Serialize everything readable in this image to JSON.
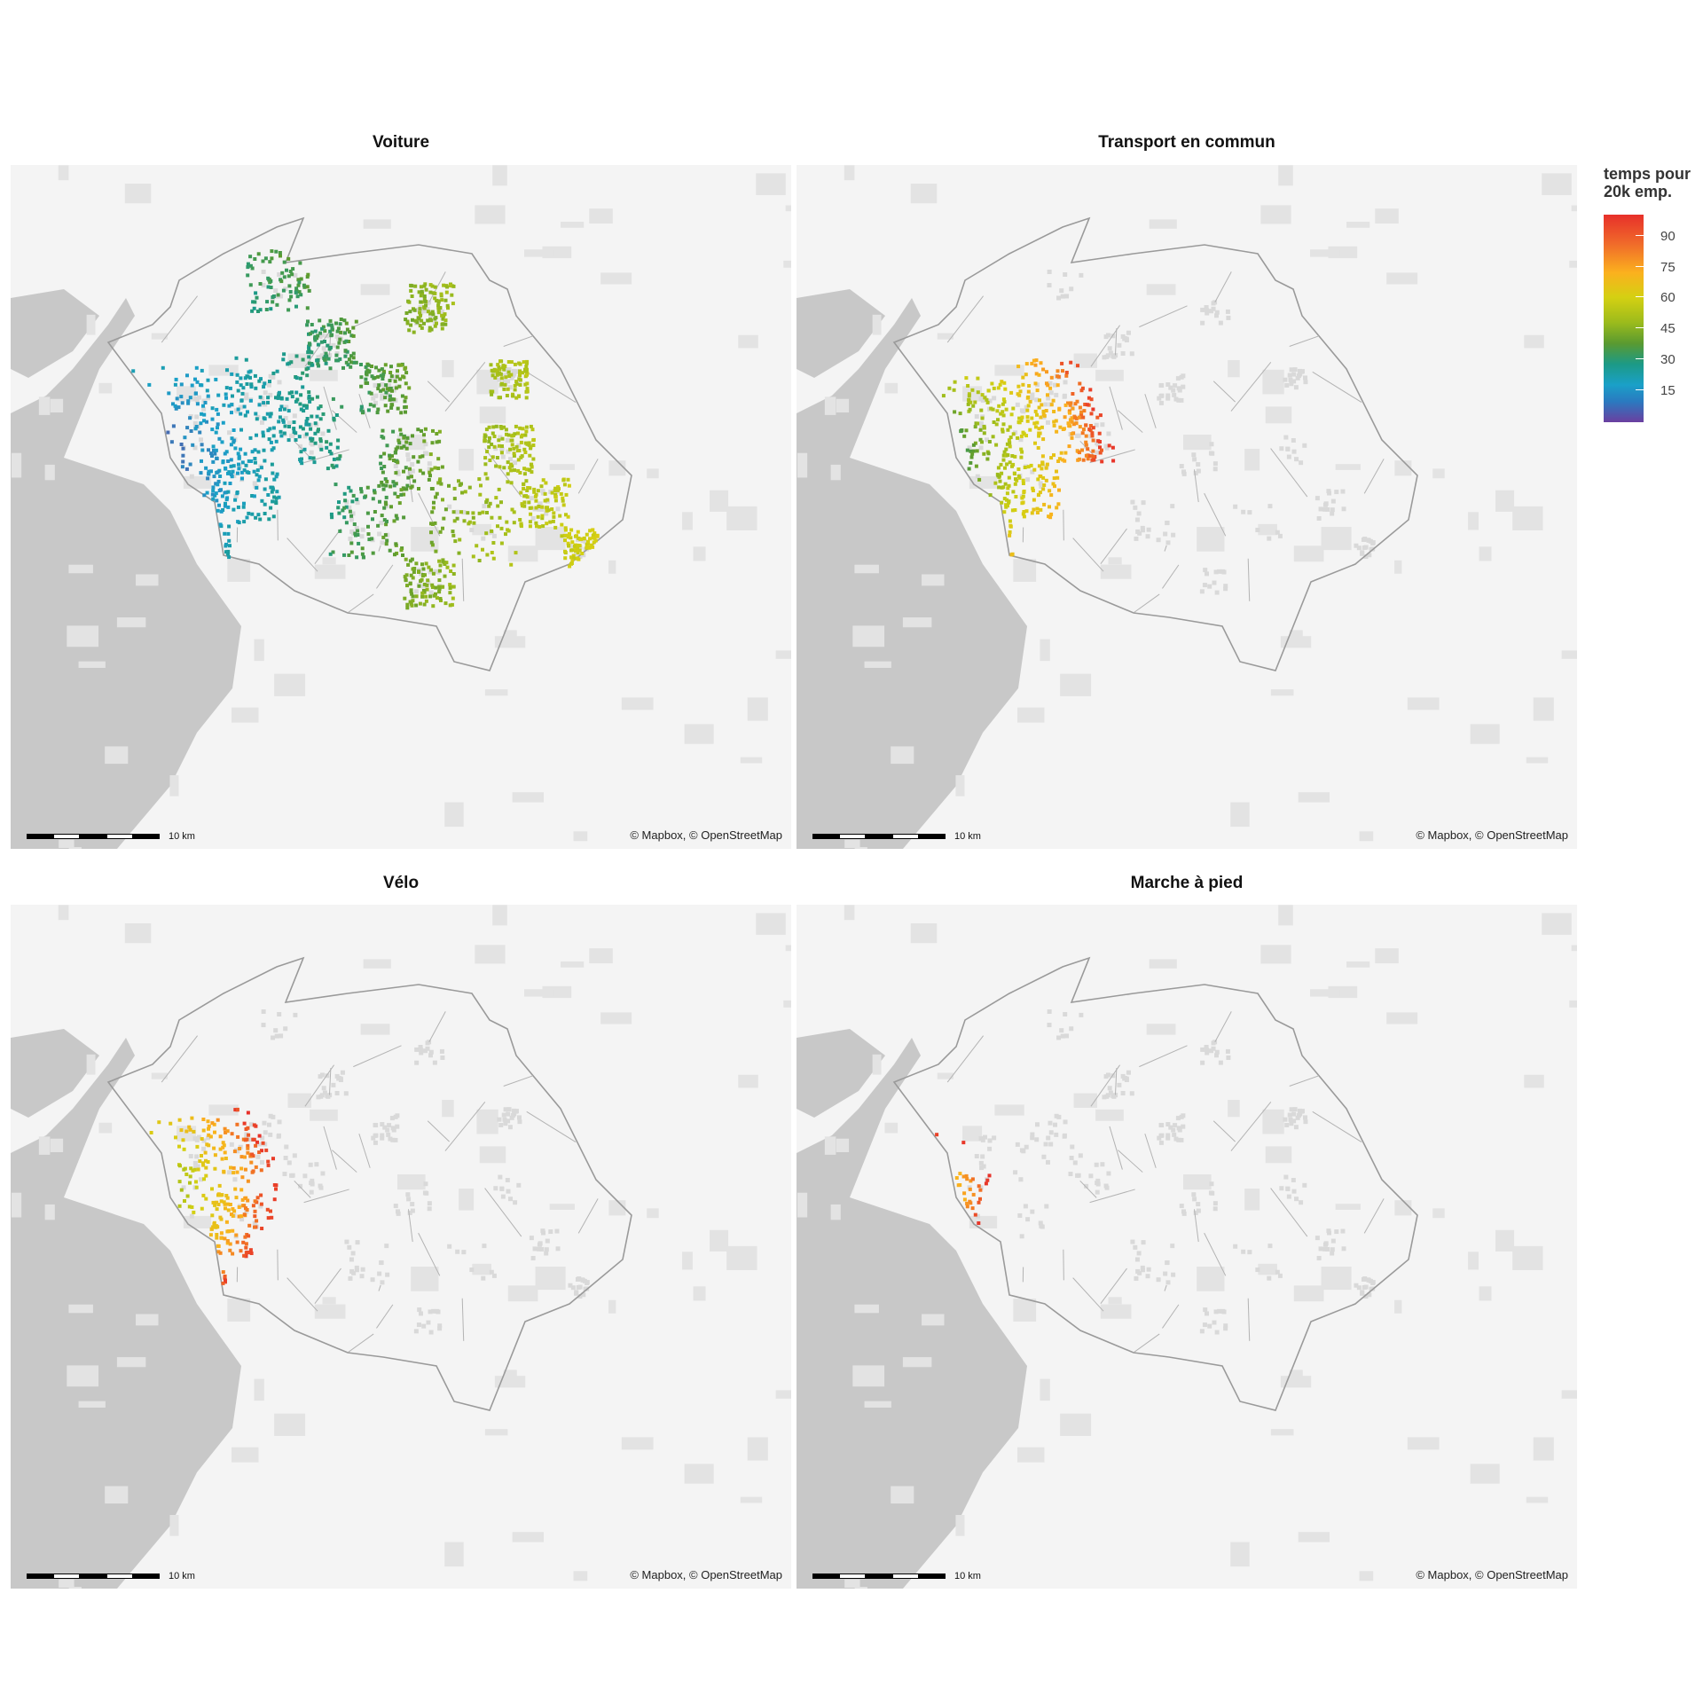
{
  "panels": [
    {
      "title": "Voiture",
      "mode": "car"
    },
    {
      "title": "Transport en commun",
      "mode": "transit"
    },
    {
      "title": "Vélo",
      "mode": "bike"
    },
    {
      "title": "Marche à pied",
      "mode": "walk"
    }
  ],
  "attribution": "© Mapbox, © OpenStreetMap",
  "scale_label": "10 km",
  "legend": {
    "title_line1": "temps pour",
    "title_line2": "20k emp.",
    "ticks": [
      "90",
      "75",
      "60",
      "45",
      "30",
      "15"
    ],
    "colors": [
      "#e7302a",
      "#fbb11e",
      "#d4d012",
      "#9bbb1c",
      "#5a9a30",
      "#1c9a86",
      "#1aa0c8",
      "#6b3fa0"
    ]
  },
  "colors": {
    "land": "#f4f4f4",
    "water": "#c8c8c8",
    "urban": "#e3e3e3",
    "boundary": "#9a9a9a"
  }
}
